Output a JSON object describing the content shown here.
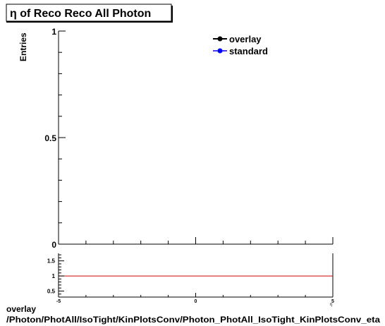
{
  "chart_data": [
    {
      "type": "line",
      "title": "η of Reco Reco All Photon",
      "ylabel": "Entries",
      "xlim": [
        -5,
        5
      ],
      "ylim": [
        0,
        1
      ],
      "y_ticks": [
        "0",
        "0.5",
        "1"
      ],
      "grid": false,
      "legend_position": "top-right",
      "series": [
        {
          "name": "overlay",
          "color": "#000000",
          "x": [],
          "values": []
        },
        {
          "name": "standard",
          "color": "#0000ff",
          "x": [],
          "values": []
        }
      ]
    },
    {
      "type": "line",
      "xlim": [
        -5,
        5
      ],
      "ylim": [
        0.3,
        1.75
      ],
      "x_ticks": [
        "-5",
        "0",
        "5"
      ],
      "y_ticks": [
        "0.5",
        "1",
        "1.5"
      ],
      "x_unit_mark": "η",
      "reference_line": {
        "y": 1,
        "color": "#cc0000"
      },
      "series": []
    }
  ],
  "footer": {
    "line1": "overlay",
    "line2": "/Photon/PhotAll/IsoTight/KinPlotsConv/Photon_PhotAll_IsoTight_KinPlotsConv_eta"
  }
}
